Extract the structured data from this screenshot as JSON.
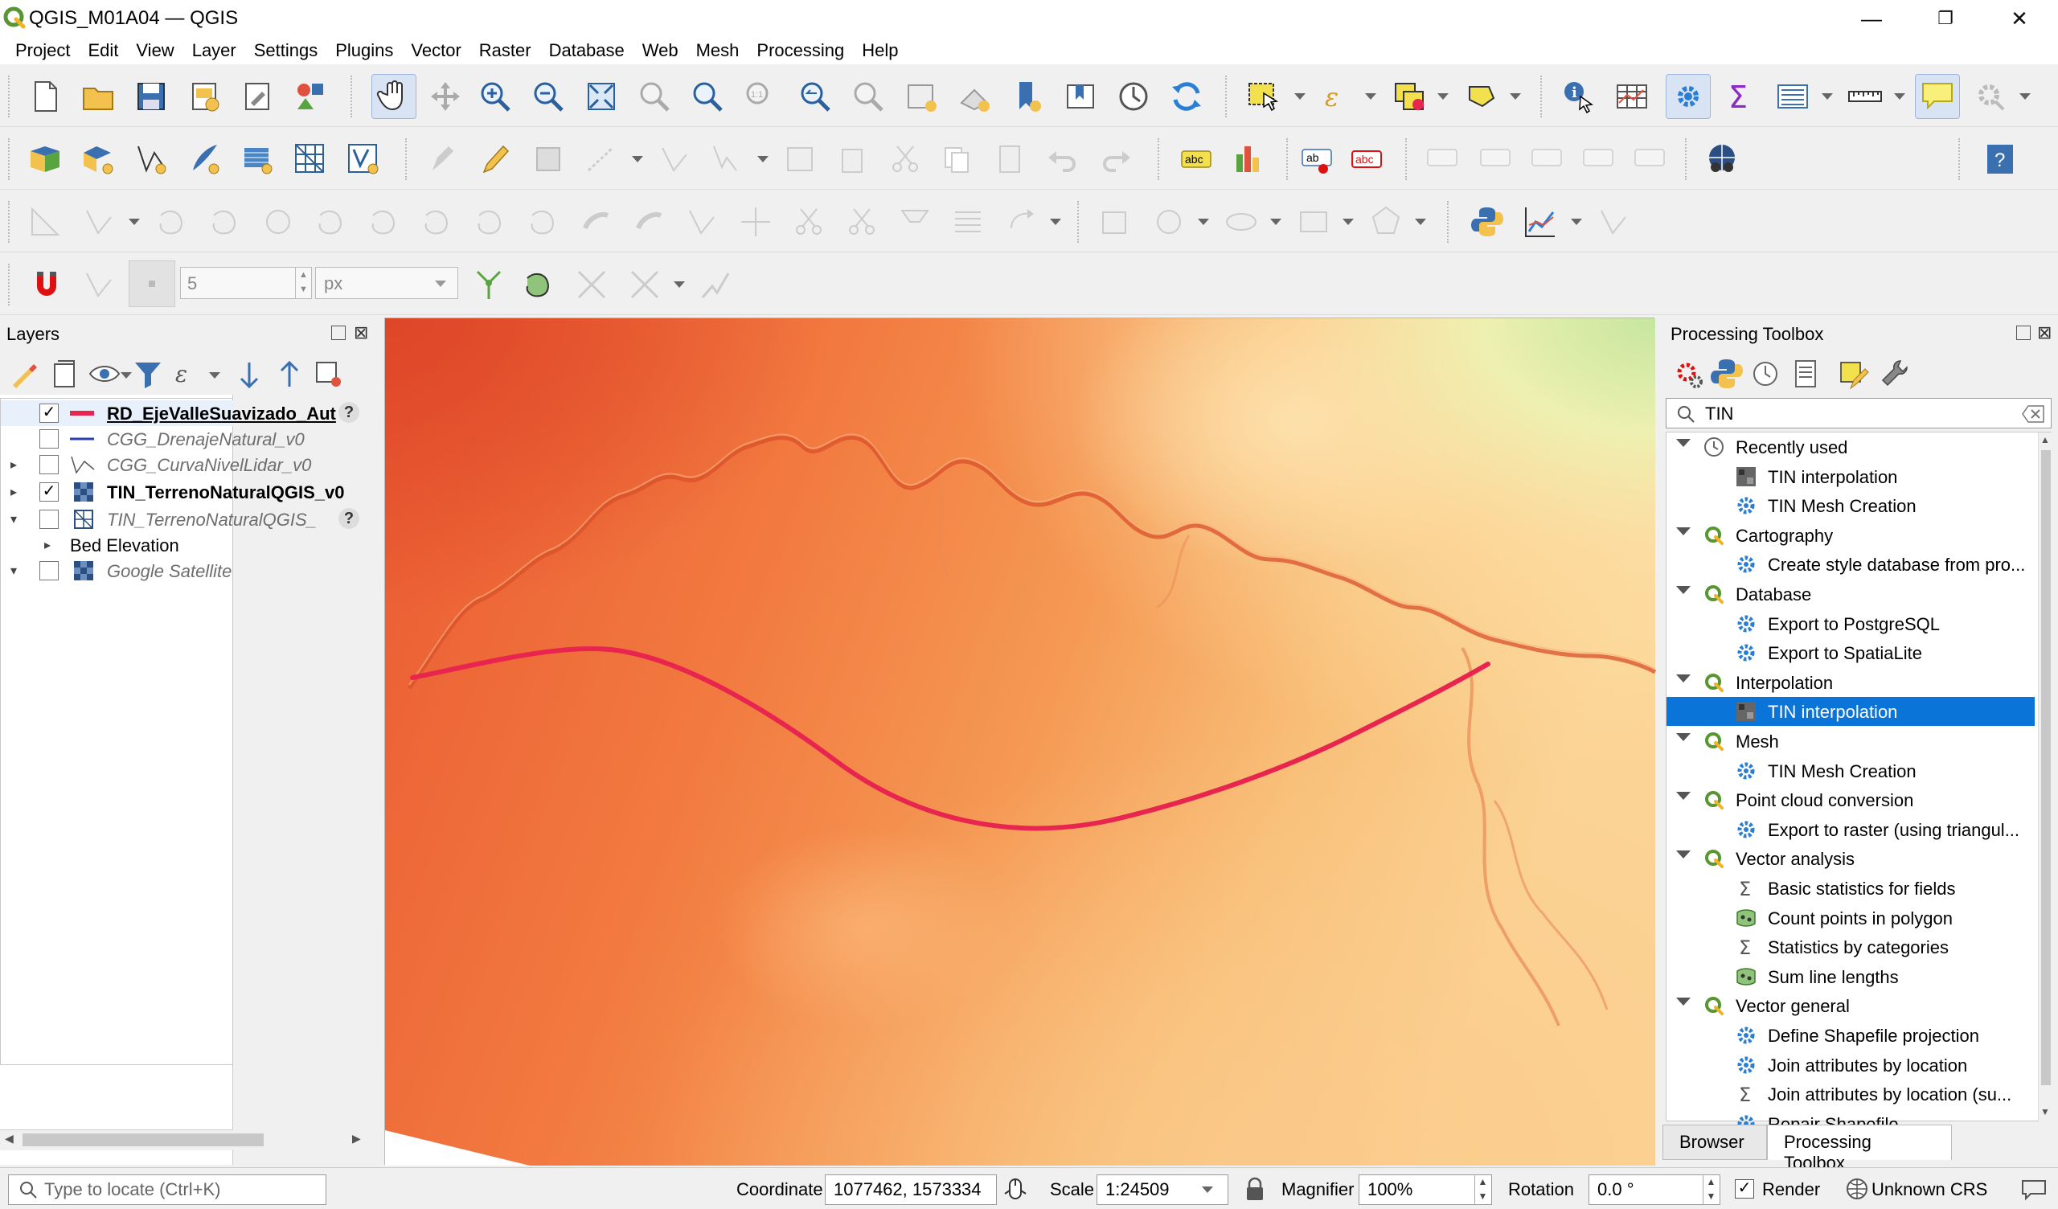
{
  "window": {
    "title": "QGIS_M01A04 — QGIS",
    "minimize_icon": "—",
    "maximize_icon": "❐",
    "close_icon": "✕"
  },
  "menubar": {
    "items": [
      "Project",
      "Edit",
      "View",
      "Layer",
      "Settings",
      "Plugins",
      "Vector",
      "Raster",
      "Database",
      "Web",
      "Mesh",
      "Processing",
      "Help"
    ]
  },
  "snapping": {
    "tolerance_value": "5",
    "units": "px"
  },
  "layers_panel": {
    "title": "Layers",
    "layers": [
      {
        "name": "RD_EjeValleSuavizado_Aut",
        "checked": "✓",
        "style": "bold-underline",
        "symbol": "red-line"
      },
      {
        "name": "CGG_DrenajeNatural_v0",
        "checked": "",
        "style": "italic-gray",
        "symbol": "blue-line"
      },
      {
        "name": "CGG_CurvaNivelLidar_v0",
        "checked": "",
        "style": "italic-gray",
        "symbol": "line-vertex"
      },
      {
        "name": "TIN_TerrenoNaturalQGIS_v0",
        "checked": "✓",
        "style": "bold",
        "symbol": "raster"
      },
      {
        "name": "TIN_TerrenoNaturalQGIS_",
        "checked": "",
        "style": "italic-gray",
        "symbol": "mesh"
      },
      {
        "name": "Bed Elevation",
        "checked": "",
        "style": "normal",
        "symbol": ""
      },
      {
        "name": "Google Satellite",
        "checked": "",
        "style": "italic-gray",
        "symbol": "raster"
      }
    ]
  },
  "map": {
    "line_color": "#e8254e"
  },
  "processing_toolbox": {
    "title": "Processing Toolbox",
    "search_value": "TIN",
    "groups": [
      {
        "label": "Recently used",
        "icon": "clock-icon",
        "items": [
          {
            "label": "TIN interpolation",
            "icon": "tin-icon"
          },
          {
            "label": "TIN Mesh Creation",
            "icon": "gear-icon"
          }
        ]
      },
      {
        "label": "Cartography",
        "icon": "qgis-icon",
        "items": [
          {
            "label": "Create style database from pro...",
            "icon": "gear-icon"
          }
        ]
      },
      {
        "label": "Database",
        "icon": "qgis-icon",
        "items": [
          {
            "label": "Export to PostgreSQL",
            "icon": "gear-icon"
          },
          {
            "label": "Export to SpatiaLite",
            "icon": "gear-icon"
          }
        ]
      },
      {
        "label": "Interpolation",
        "icon": "qgis-icon",
        "items": [
          {
            "label": "TIN interpolation",
            "icon": "tin-icon",
            "selected": true
          }
        ]
      },
      {
        "label": "Mesh",
        "icon": "qgis-icon",
        "items": [
          {
            "label": "TIN Mesh Creation",
            "icon": "gear-icon"
          }
        ]
      },
      {
        "label": "Point cloud conversion",
        "icon": "qgis-icon",
        "items": [
          {
            "label": "Export to raster (using triangul...",
            "icon": "gear-icon"
          }
        ]
      },
      {
        "label": "Vector analysis",
        "icon": "qgis-icon",
        "items": [
          {
            "label": "Basic statistics for fields",
            "icon": "sigma-icon"
          },
          {
            "label": "Count points in polygon",
            "icon": "count-icon"
          },
          {
            "label": "Statistics by categories",
            "icon": "sigma-icon"
          },
          {
            "label": "Sum line lengths",
            "icon": "count-icon"
          }
        ]
      },
      {
        "label": "Vector general",
        "icon": "qgis-icon",
        "items": [
          {
            "label": "Define Shapefile projection",
            "icon": "gear-icon"
          },
          {
            "label": "Join attributes by location",
            "icon": "gear-icon"
          },
          {
            "label": "Join attributes by location (su...",
            "icon": "sigma-icon"
          },
          {
            "label": "Repair Shapefile",
            "icon": "gear-icon"
          }
        ]
      }
    ],
    "tabs": [
      "Browser",
      "Processing Toolbox"
    ]
  },
  "statusbar": {
    "locator_placeholder": "Type to locate (Ctrl+K)",
    "coordinate_label": "Coordinate",
    "coordinate_value": "1077462, 1573334",
    "scale_label": "Scale",
    "scale_value": "1:24509",
    "magnifier_label": "Magnifier",
    "magnifier_value": "100%",
    "rotation_label": "Rotation",
    "rotation_value": "0.0 °",
    "render_label": "Render",
    "render_checked": "✓",
    "crs_label": "Unknown CRS"
  }
}
